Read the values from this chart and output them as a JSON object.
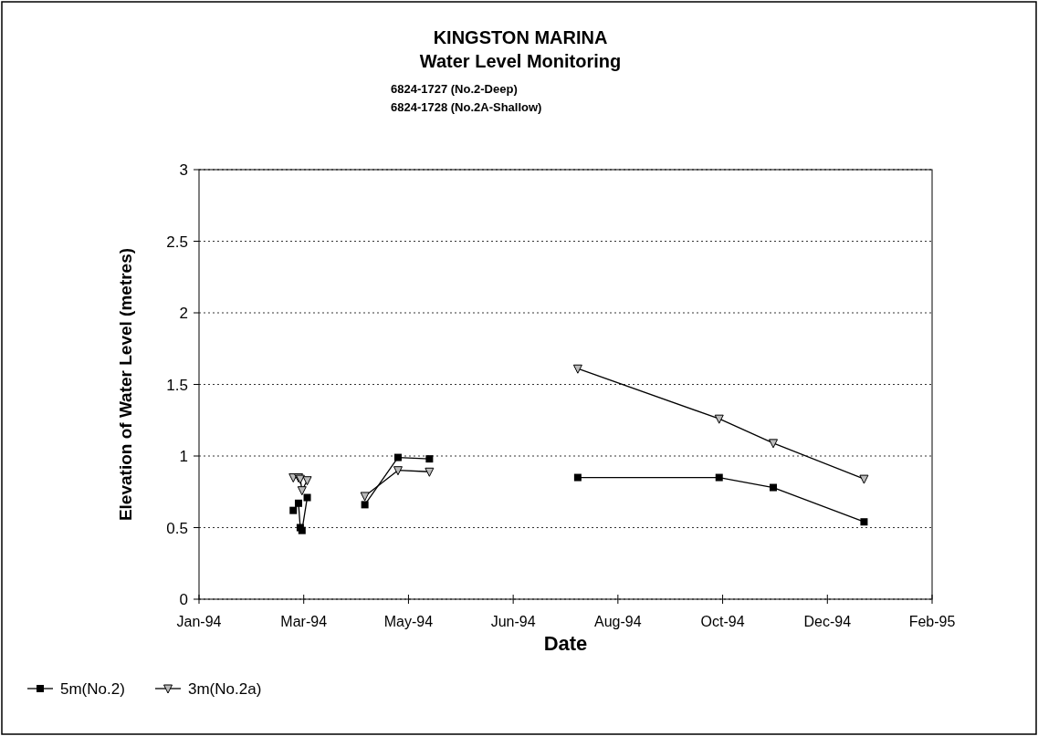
{
  "chart_data": {
    "type": "line",
    "title": "KINGSTON MARINA",
    "subtitle": "Water Level Monitoring",
    "annotations": [
      "6824-1727 (No.2-Deep)",
      "6824-1728 (No.2A-Shallow)"
    ],
    "xlabel": "Date",
    "ylabel": "Elevation of Water Level (metres)",
    "xlim": [
      "1994-01-01",
      "1995-02-25"
    ],
    "xticks": [
      {
        "value": "1994-01-01",
        "label": "Jan-94"
      },
      {
        "value": "1994-03-02",
        "label": "Mar-94"
      },
      {
        "value": "1994-05-01",
        "label": "May-94"
      },
      {
        "value": "1994-06-30",
        "label": "Jun-94"
      },
      {
        "value": "1994-08-29",
        "label": "Aug-94"
      },
      {
        "value": "1994-10-28",
        "label": "Oct-94"
      },
      {
        "value": "1994-12-27",
        "label": "Dec-94"
      },
      {
        "value": "1995-02-25",
        "label": "Feb-95"
      }
    ],
    "ylim": [
      0,
      3
    ],
    "yticks": [
      0,
      0.5,
      1,
      1.5,
      2,
      2.5,
      3
    ],
    "grid": "y",
    "legend": "bottom",
    "line_style": "solid",
    "series": [
      {
        "name": "5m(No.2)",
        "color": "#000000",
        "marker": "square",
        "x": [
          "1994-02-24",
          "1994-02-27",
          "1994-02-28",
          "1994-03-01",
          "1994-03-04",
          "1994-03-20",
          "1994-04-06",
          "1994-04-25",
          "1994-05-13",
          "1994-06-20",
          "1994-08-06",
          "1994-10-26",
          "1994-11-26",
          "1995-01-17"
        ],
        "values": [
          0.62,
          0.67,
          0.5,
          0.48,
          0.71,
          null,
          0.66,
          0.99,
          0.98,
          null,
          0.85,
          0.85,
          0.78,
          0.54
        ]
      },
      {
        "name": "3m(No.2a)",
        "color": "#000000",
        "marker": "triangle",
        "x": [
          "1994-02-24",
          "1994-02-27",
          "1994-02-28",
          "1994-03-01",
          "1994-03-04",
          "1994-03-20",
          "1994-04-06",
          "1994-04-25",
          "1994-05-13",
          "1994-06-20",
          "1994-08-06",
          "1994-10-26",
          "1994-11-26",
          "1995-01-17"
        ],
        "values": [
          0.85,
          0.85,
          0.84,
          0.76,
          0.83,
          null,
          0.72,
          0.9,
          0.89,
          null,
          1.61,
          1.26,
          1.09,
          0.84
        ]
      }
    ]
  }
}
